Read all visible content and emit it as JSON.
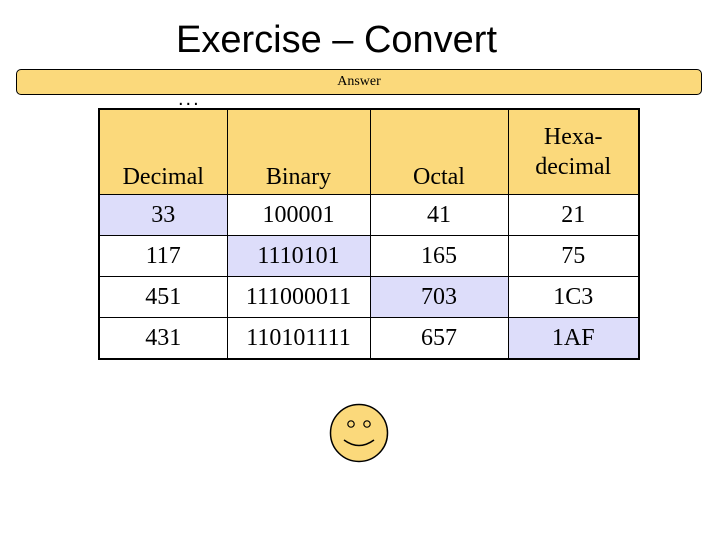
{
  "slide": {
    "title": "Exercise – Convert",
    "title_continuation": "...",
    "answer_label": "Answer"
  },
  "table": {
    "headers": [
      "Decimal",
      "Binary",
      "Octal",
      "Hexa-\ndecimal"
    ],
    "rows": [
      {
        "cells": [
          "33",
          "100001",
          "41",
          "21"
        ],
        "given_column": 0
      },
      {
        "cells": [
          "117",
          "1110101",
          "165",
          "75"
        ],
        "given_column": 1
      },
      {
        "cells": [
          "451",
          "111000011",
          "703",
          "1C3"
        ],
        "given_column": 2
      },
      {
        "cells": [
          "431",
          "110101111",
          "657",
          "1AF"
        ],
        "given_column": 3
      }
    ]
  },
  "colors": {
    "header_fill": "#fbd97b",
    "answer_bar_fill": "#fbd97b",
    "given_cell_fill": "#ddddfa",
    "smiley_fill": "#fbd97b"
  },
  "decorations": {
    "smiley_icon": "smiley-face-icon"
  }
}
